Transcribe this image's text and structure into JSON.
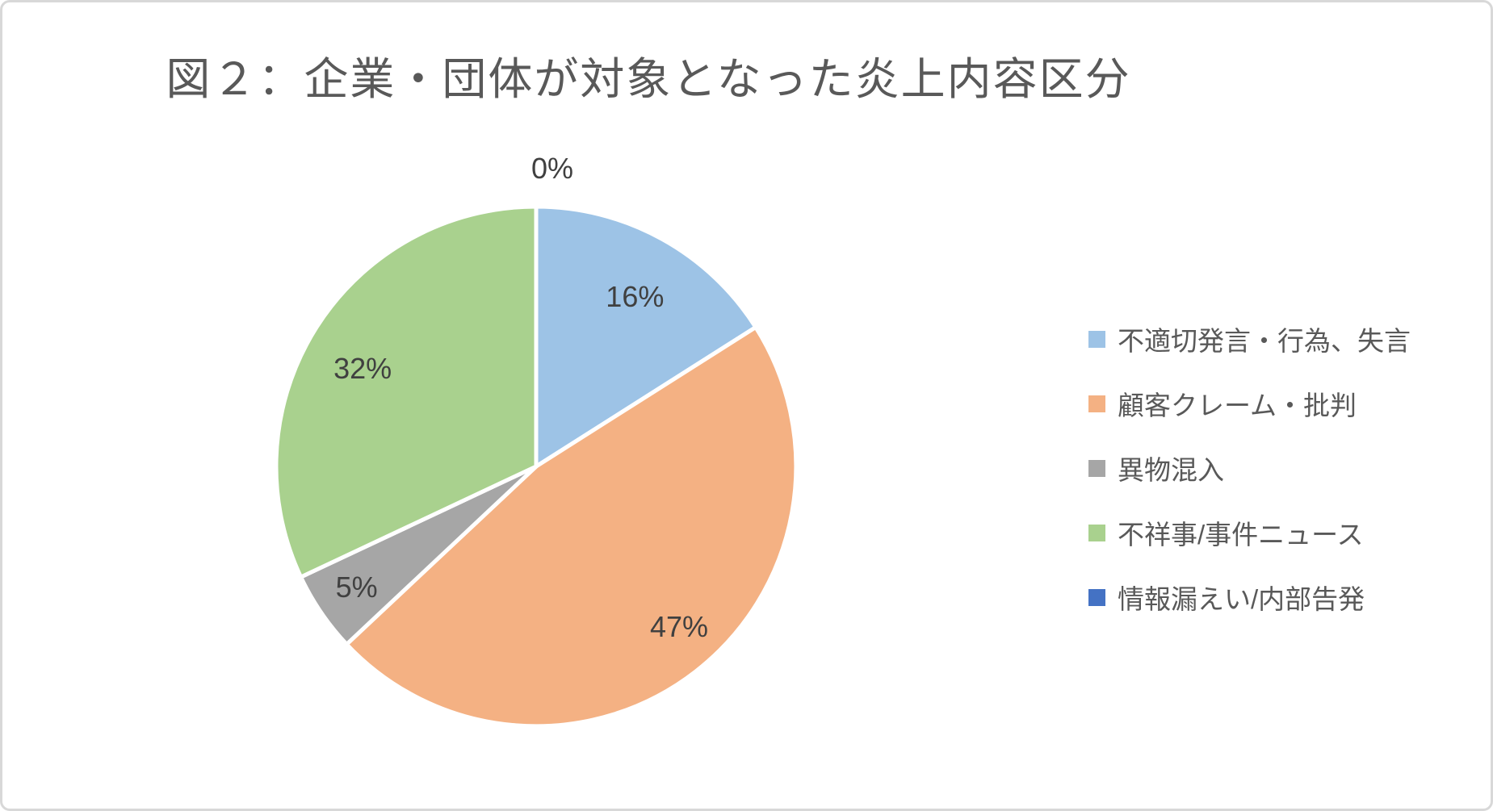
{
  "chart_data": {
    "type": "pie",
    "title": "図２：企業・団体が対象となった炎上内容区分",
    "categories": [
      "不適切発言・行為、失言",
      "顧客クレーム・批判",
      "異物混入",
      "不祥事/事件ニュース",
      "情報漏えい/内部告発"
    ],
    "values": [
      16,
      47,
      5,
      32,
      0
    ],
    "data_labels": [
      "16%",
      "47%",
      "5%",
      "32%",
      "0%"
    ],
    "unit": "%",
    "colors": [
      "#9DC3E6",
      "#F4B183",
      "#A6A6A6",
      "#A9D18E",
      "#4472C4"
    ],
    "slice_border_color": "#FFFFFF",
    "start_angle_deg": 0,
    "direction": "clockwise",
    "legend_position": "right",
    "text_colors": {
      "title": "#595959",
      "data_labels": "#404040",
      "legend": "#595959"
    }
  }
}
